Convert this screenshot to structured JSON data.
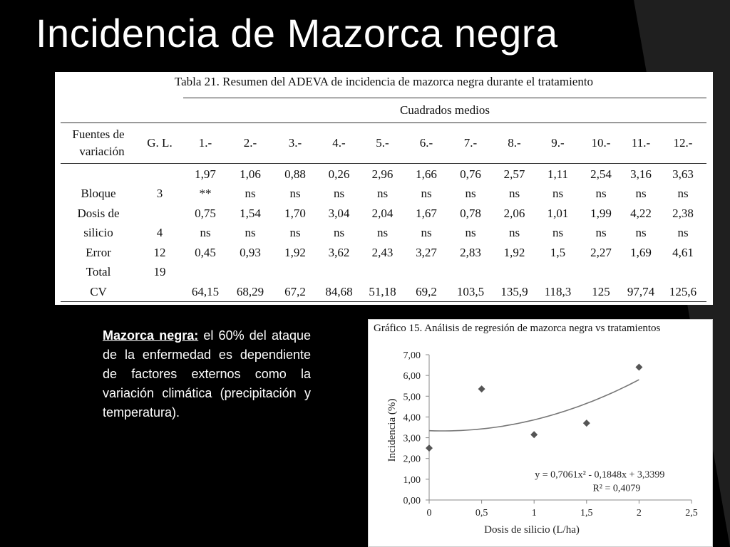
{
  "slide": {
    "title": "Incidencia de Mazorca negra"
  },
  "table": {
    "caption": "Tabla 21. Resumen del ADEVA de incidencia de mazorca negra durante el tratamiento",
    "group_header": "Cuadrados medios",
    "source_header_line1": "Fuentes de",
    "source_header_line2": "variación",
    "gl_header": "G. L.",
    "treatments": [
      "1.-",
      "2.-",
      "3.-",
      "4.-",
      "5.-",
      "6.-",
      "7.-",
      "8.-",
      "9.-",
      "10.-",
      "11.-",
      "12.-"
    ],
    "rows": [
      {
        "source": "",
        "gl": "",
        "values": [
          "1,97",
          "1,06",
          "0,88",
          "0,26",
          "2,96",
          "1,66",
          "0,76",
          "2,57",
          "1,11",
          "2,54",
          "3,16",
          "3,63"
        ]
      },
      {
        "source": "Bloque",
        "gl": "3",
        "values": [
          "**",
          "ns",
          "ns",
          "ns",
          "ns",
          "ns",
          "ns",
          "ns",
          "ns",
          "ns",
          "ns",
          "ns"
        ]
      },
      {
        "source": "Dosis de",
        "gl": "",
        "values": [
          "0,75",
          "1,54",
          "1,70",
          "3,04",
          "2,04",
          "1,67",
          "0,78",
          "2,06",
          "1,01",
          "1,99",
          "4,22",
          "2,38"
        ]
      },
      {
        "source": "silicio",
        "gl": "4",
        "values": [
          "ns",
          "ns",
          "ns",
          "ns",
          "ns",
          "ns",
          "ns",
          "ns",
          "ns",
          "ns",
          "ns",
          "ns"
        ]
      },
      {
        "source": "Error",
        "gl": "12",
        "values": [
          "0,45",
          "0,93",
          "1,92",
          "3,62",
          "2,43",
          "3,27",
          "2,83",
          "1,92",
          "1,5",
          "2,27",
          "1,69",
          "4,61"
        ]
      },
      {
        "source": "Total",
        "gl": "19",
        "values": [
          "",
          "",
          "",
          "",
          "",
          "",
          "",
          "",
          "",
          "",
          "",
          ""
        ]
      },
      {
        "source": "CV",
        "gl": "",
        "values": [
          "64,15",
          "68,29",
          "67,2",
          "84,68",
          "51,18",
          "69,2",
          "103,5",
          "135,9",
          "118,3",
          "125",
          "97,74",
          "125,6"
        ]
      }
    ]
  },
  "note": {
    "title": "Mazorca negra:",
    "body": " el 60% del ataque de la enfermedad es dependiente de factores externos como la variación climática (precipitación y temperatura)."
  },
  "chart_data": {
    "type": "scatter",
    "title": "Gráfico 15. Análisis de regresión de mazorca negra vs tratamientos",
    "xlabel": "Dosis de silicio (L/ha)",
    "ylabel": "Incidencia (%)",
    "xlim": [
      0,
      2.5
    ],
    "ylim": [
      0,
      7
    ],
    "xticks": [
      0,
      0.5,
      1,
      1.5,
      2,
      2.5
    ],
    "xtick_labels": [
      "0",
      "0,5",
      "1",
      "1,5",
      "2",
      "2,5"
    ],
    "yticks": [
      0,
      1,
      2,
      3,
      4,
      5,
      6,
      7
    ],
    "ytick_labels": [
      "0,00",
      "1,00",
      "2,00",
      "3,00",
      "4,00",
      "5,00",
      "6,00",
      "7,00"
    ],
    "x": [
      0,
      0.5,
      1,
      1.5,
      2
    ],
    "y": [
      2.5,
      5.35,
      3.15,
      3.7,
      6.4
    ],
    "trendline": {
      "a": 0.7061,
      "b": -0.1848,
      "c": 3.3399,
      "x_range": [
        0,
        2
      ]
    },
    "equation": "y = 0,7061x² - 0,1848x + 3,3399",
    "r_squared": "R² = 0,4079",
    "grid": false,
    "legend": "none",
    "colors": {
      "marker": "#555555",
      "trendline": "#777777",
      "axis": "#888888"
    }
  }
}
